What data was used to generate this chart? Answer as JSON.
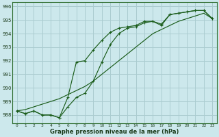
{
  "xlabel": "Graphe pression niveau de la mer (hPa)",
  "bg_color": "#cce8ec",
  "grid_color": "#aaccd0",
  "line_color": "#1a5c1a",
  "xlim": [
    -0.5,
    23.5
  ],
  "ylim": [
    987.4,
    996.3
  ],
  "yticks": [
    988,
    989,
    990,
    991,
    992,
    993,
    994,
    995,
    996
  ],
  "xticks": [
    0,
    1,
    2,
    3,
    4,
    5,
    6,
    7,
    8,
    9,
    10,
    11,
    12,
    13,
    14,
    15,
    16,
    17,
    18,
    19,
    20,
    21,
    22,
    23
  ],
  "line1_x": [
    0,
    1,
    2,
    3,
    4,
    5,
    6,
    7,
    8,
    9,
    10,
    11,
    12,
    13,
    14,
    15,
    16,
    17,
    18,
    19,
    20,
    21,
    22,
    23
  ],
  "line1_y": [
    988.3,
    988.1,
    988.3,
    988.0,
    988.0,
    987.8,
    988.6,
    989.3,
    989.6,
    990.5,
    991.9,
    993.2,
    994.0,
    994.4,
    994.5,
    994.8,
    994.9,
    994.7,
    995.4,
    995.5,
    995.6,
    995.7,
    995.7,
    995.1
  ],
  "line2_x": [
    0,
    1,
    2,
    3,
    4,
    5,
    6,
    7,
    8,
    9,
    10,
    11,
    12,
    13,
    14,
    15,
    16,
    17,
    18,
    19,
    20,
    21,
    22,
    23
  ],
  "line2_y": [
    988.3,
    988.1,
    988.3,
    988.0,
    988.0,
    987.8,
    989.3,
    991.9,
    992.0,
    992.8,
    993.5,
    994.1,
    994.4,
    994.5,
    994.6,
    994.9,
    994.9,
    994.6,
    995.4,
    995.5,
    995.6,
    995.7,
    995.7,
    995.1
  ],
  "line3_x": [
    0,
    1,
    2,
    3,
    4,
    5,
    6,
    7,
    8,
    9,
    10,
    11,
    12,
    13,
    14,
    15,
    16,
    17,
    18,
    19,
    20,
    21,
    22,
    23
  ],
  "line3_y": [
    988.3,
    988.4,
    988.6,
    988.8,
    989.0,
    989.2,
    989.5,
    989.8,
    990.1,
    990.5,
    991.0,
    991.5,
    992.0,
    992.5,
    993.0,
    993.5,
    994.0,
    994.3,
    994.6,
    994.9,
    995.1,
    995.3,
    995.5,
    995.1
  ]
}
